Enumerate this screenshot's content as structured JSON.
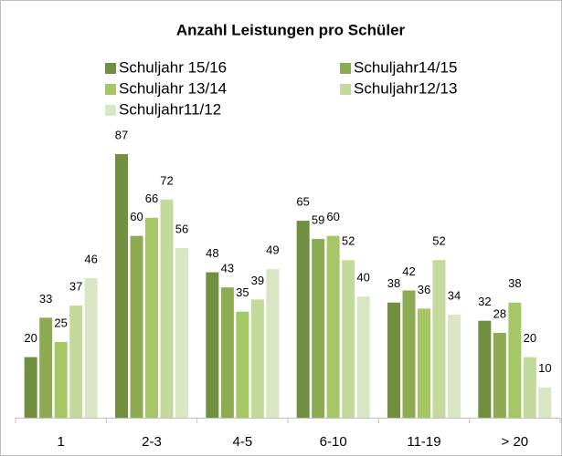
{
  "chart_data": {
    "type": "bar",
    "title": "Anzahl Leistungen pro Schüler",
    "categories": [
      "1",
      "2-3",
      "4-5",
      "6-10",
      "11-19",
      "> 20"
    ],
    "series": [
      {
        "name": "Schuljahr 15/16",
        "color": "#71903f",
        "values": [
          20,
          87,
          48,
          65,
          38,
          32
        ]
      },
      {
        "name": "Schuljahr14/15",
        "color": "#8cab53",
        "values": [
          33,
          60,
          43,
          59,
          42,
          28
        ]
      },
      {
        "name": "Schuljahr 13/14",
        "color": "#a5c765",
        "values": [
          25,
          66,
          35,
          60,
          36,
          38
        ]
      },
      {
        "name": "Schuljahr12/13",
        "color": "#c3da9c",
        "values": [
          37,
          72,
          39,
          52,
          52,
          20
        ]
      },
      {
        "name": "Schuljahr11/12",
        "color": "#d9e7c4",
        "values": [
          46,
          56,
          49,
          40,
          34,
          10
        ]
      }
    ]
  }
}
